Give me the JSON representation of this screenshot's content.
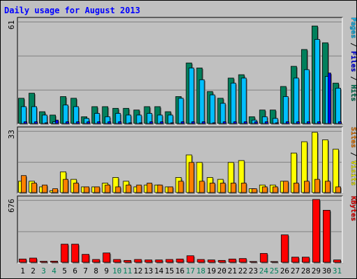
{
  "title": "Daily usage for August 2013",
  "colors": {
    "hits": "#00805c",
    "files": "#00bfff",
    "pages": "#0000ff",
    "visits": "#ffff00",
    "sites": "#ff8000",
    "kbytes": "#ff0000",
    "weekend_day": "#00805c",
    "weekday": "#000000",
    "panel_bg": "#c0c0c0",
    "grid": "#808080"
  },
  "chart_data": [
    {
      "type": "bar",
      "name": "hits-files-pages",
      "ymax_label": "61",
      "ylim": [
        0,
        61
      ],
      "legend": [
        "Pages",
        "Files",
        "Hits"
      ],
      "categories": [
        "1",
        "2",
        "3",
        "4",
        "5",
        "6",
        "7",
        "8",
        "9",
        "10",
        "11",
        "12",
        "13",
        "14",
        "15",
        "16",
        "17",
        "18",
        "19",
        "20",
        "21",
        "22",
        "23",
        "24",
        "25",
        "26",
        "27",
        "28",
        "29",
        "30",
        "31"
      ],
      "series": [
        {
          "name": "Hits",
          "values": [
            15,
            18,
            7,
            5,
            16,
            15,
            4,
            10,
            10,
            9,
            9,
            8,
            10,
            10,
            7,
            16,
            36,
            33,
            19,
            15,
            27,
            29,
            4,
            8,
            8,
            22,
            34,
            44,
            58,
            48,
            24
          ]
        },
        {
          "name": "Files",
          "values": [
            10,
            10,
            5,
            1,
            11,
            10,
            3,
            6,
            4,
            6,
            5,
            5,
            6,
            5,
            5,
            15,
            33,
            26,
            17,
            12,
            24,
            27,
            2,
            4,
            3,
            16,
            27,
            32,
            50,
            28,
            21
          ]
        },
        {
          "name": "Pages",
          "values": [
            1,
            1,
            0,
            2,
            1,
            1,
            1,
            1,
            1,
            1,
            0,
            0,
            1,
            1,
            0,
            1,
            1,
            1,
            0,
            1,
            1,
            1,
            1,
            1,
            0,
            1,
            1,
            1,
            1,
            30,
            1
          ]
        }
      ]
    },
    {
      "type": "bar",
      "name": "visits-sites",
      "ymax_label": "33",
      "ylim": [
        0,
        33
      ],
      "legend": [
        "Sites",
        "Visits"
      ],
      "categories": [
        "1",
        "2",
        "3",
        "4",
        "5",
        "6",
        "7",
        "8",
        "9",
        "10",
        "11",
        "12",
        "13",
        "14",
        "15",
        "16",
        "17",
        "18",
        "19",
        "20",
        "21",
        "22",
        "23",
        "24",
        "25",
        "26",
        "27",
        "28",
        "29",
        "30",
        "31"
      ],
      "series": [
        {
          "name": "Visits",
          "values": [
            6,
            6,
            3,
            1,
            11,
            7,
            3,
            3,
            5,
            8,
            6,
            3,
            4,
            4,
            3,
            8,
            20,
            16,
            8,
            7,
            16,
            17,
            2,
            4,
            4,
            6,
            21,
            27,
            32,
            28,
            23
          ]
        },
        {
          "name": "Sites",
          "values": [
            9,
            5,
            4,
            2,
            7,
            5,
            3,
            3,
            4,
            3,
            4,
            4,
            5,
            4,
            3,
            6,
            16,
            6,
            5,
            5,
            5,
            5,
            2,
            3,
            3,
            6,
            5,
            6,
            7,
            6,
            3
          ]
        }
      ]
    },
    {
      "type": "bar",
      "name": "kbytes",
      "ymax_label": "676",
      "ylim": [
        0,
        676
      ],
      "legend": [
        "KBytes"
      ],
      "categories": [
        "1",
        "2",
        "3",
        "4",
        "5",
        "6",
        "7",
        "8",
        "9",
        "10",
        "11",
        "12",
        "13",
        "14",
        "15",
        "16",
        "17",
        "18",
        "19",
        "20",
        "21",
        "22",
        "23",
        "24",
        "25",
        "26",
        "27",
        "28",
        "29",
        "30",
        "31"
      ],
      "series": [
        {
          "name": "KBytes",
          "values": [
            35,
            45,
            10,
            12,
            195,
            195,
            85,
            30,
            100,
            30,
            20,
            30,
            25,
            25,
            30,
            35,
            70,
            30,
            25,
            20,
            35,
            40,
            8,
            95,
            5,
            295,
            55,
            55,
            676,
            560,
            25
          ]
        }
      ]
    }
  ],
  "x_labels": [
    "1",
    "2",
    "3",
    "4",
    "5",
    "6",
    "7",
    "8",
    "9",
    "10",
    "11",
    "12",
    "13",
    "14",
    "15",
    "16",
    "17",
    "18",
    "19",
    "20",
    "21",
    "22",
    "23",
    "24",
    "25",
    "26",
    "27",
    "28",
    "29",
    "30",
    "31"
  ],
  "weekend_days": [
    3,
    4,
    10,
    11,
    17,
    18,
    24,
    25,
    31
  ],
  "legends": {
    "panel1": [
      {
        "text": "Pages",
        "color": "#00bfff"
      },
      {
        "text": " / ",
        "color": "#000000"
      },
      {
        "text": "Files",
        "color": "#0000ff"
      },
      {
        "text": " / ",
        "color": "#000000"
      },
      {
        "text": "Hits",
        "color": "#00805c"
      }
    ],
    "panel2": [
      {
        "text": "Sites",
        "color": "#ff8000"
      },
      {
        "text": " / ",
        "color": "#000000"
      },
      {
        "text": "Visits",
        "color": "#ffff00"
      }
    ],
    "panel3": [
      {
        "text": "KBytes",
        "color": "#ff0000"
      }
    ]
  }
}
